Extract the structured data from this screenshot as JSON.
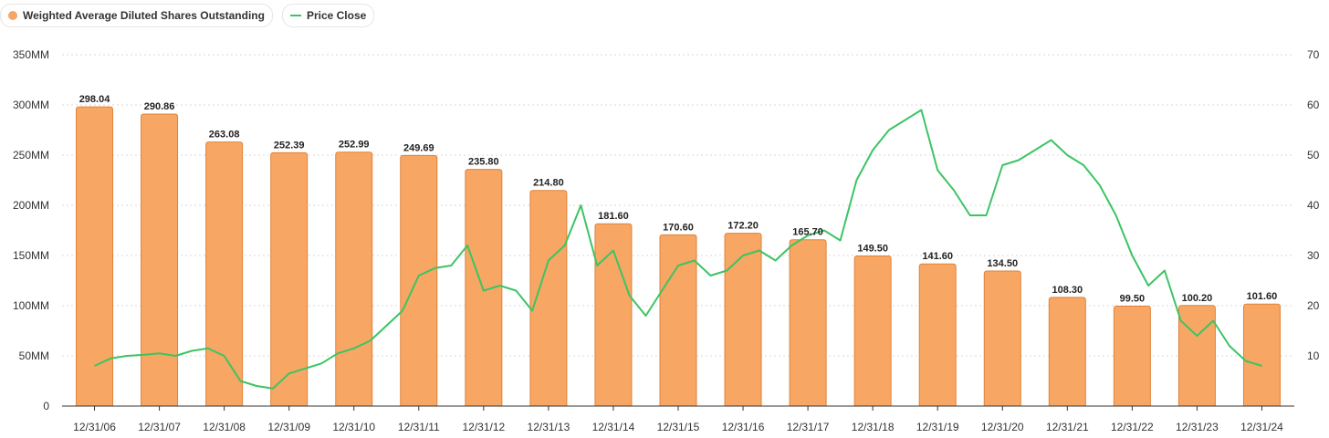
{
  "legend": {
    "bars_label": "Weighted Average Diluted Shares Outstanding",
    "line_label": "Price Close"
  },
  "colors": {
    "bar_fill": "#f7a663",
    "bar_stroke": "#e0833a",
    "line": "#3cc464",
    "grid": "#d9d9d9",
    "axis": "#333333"
  },
  "chart_data": {
    "type": "bar",
    "title": "",
    "categories": [
      "12/31/06",
      "12/31/07",
      "12/31/08",
      "12/31/09",
      "12/31/10",
      "12/31/11",
      "12/31/12",
      "12/31/13",
      "12/31/14",
      "12/31/15",
      "12/31/16",
      "12/31/17",
      "12/31/18",
      "12/31/19",
      "12/31/20",
      "12/31/21",
      "12/31/22",
      "12/31/23",
      "12/31/24"
    ],
    "series": [
      {
        "name": "Weighted Average Diluted Shares Outstanding",
        "type": "bar",
        "axis": "left",
        "values": [
          298.04,
          290.86,
          263.08,
          252.39,
          252.99,
          249.69,
          235.8,
          214.8,
          181.6,
          170.6,
          172.2,
          165.7,
          149.5,
          141.6,
          134.5,
          108.3,
          99.5,
          100.2,
          101.6
        ],
        "value_labels": [
          "298.04",
          "290.86",
          "263.08",
          "252.39",
          "252.99",
          "249.69",
          "235.80",
          "214.80",
          "181.60",
          "170.60",
          "172.20",
          "165.70",
          "149.50",
          "141.60",
          "134.50",
          "108.30",
          "99.50",
          "100.20",
          "101.60"
        ]
      },
      {
        "name": "Price Close",
        "type": "line",
        "axis": "right",
        "x": [
          2006.0,
          2006.25,
          2006.5,
          2006.75,
          2007.0,
          2007.25,
          2007.5,
          2007.75,
          2008.0,
          2008.25,
          2008.5,
          2008.75,
          2009.0,
          2009.25,
          2009.5,
          2009.75,
          2010.0,
          2010.25,
          2010.5,
          2010.75,
          2011.0,
          2011.25,
          2011.5,
          2011.75,
          2012.0,
          2012.25,
          2012.5,
          2012.75,
          2013.0,
          2013.25,
          2013.5,
          2013.75,
          2014.0,
          2014.25,
          2014.5,
          2014.75,
          2015.0,
          2015.25,
          2015.5,
          2015.75,
          2016.0,
          2016.25,
          2016.5,
          2016.75,
          2017.0,
          2017.25,
          2017.5,
          2017.75,
          2018.0,
          2018.25,
          2018.5,
          2018.75,
          2019.0,
          2019.25,
          2019.5,
          2019.75,
          2020.0,
          2020.25,
          2020.5,
          2020.75,
          2021.0,
          2021.25,
          2021.5,
          2021.75,
          2022.0,
          2022.25,
          2022.5,
          2022.75,
          2023.0,
          2023.25,
          2023.5,
          2023.75,
          2024.0
        ],
        "values": [
          8,
          9.5,
          10,
          10.2,
          10.5,
          10,
          11,
          11.5,
          10,
          5,
          4,
          3.5,
          6.5,
          7.5,
          8.5,
          10.5,
          11.5,
          13,
          16,
          19,
          26,
          27.5,
          28,
          32,
          23,
          24,
          23,
          19,
          29,
          32,
          40,
          28,
          31,
          22,
          18,
          23,
          28,
          29,
          26,
          27,
          30,
          31,
          29,
          32,
          34,
          35,
          33,
          45,
          51,
          55,
          57,
          59,
          47,
          43,
          38,
          38,
          48,
          49,
          51,
          53,
          50,
          48,
          44,
          38,
          30,
          24,
          27,
          17,
          14,
          17,
          12,
          9,
          8
        ]
      }
    ],
    "y_left": {
      "min": 0,
      "max": 350,
      "ticks": [
        "0",
        "50MM",
        "100MM",
        "150MM",
        "200MM",
        "250MM",
        "300MM",
        "350MM"
      ]
    },
    "y_right": {
      "min": 0,
      "max": 70,
      "ticks": [
        "10",
        "20",
        "30",
        "40",
        "50",
        "60",
        "70"
      ]
    },
    "grid": true,
    "legend_position": "top-left"
  }
}
